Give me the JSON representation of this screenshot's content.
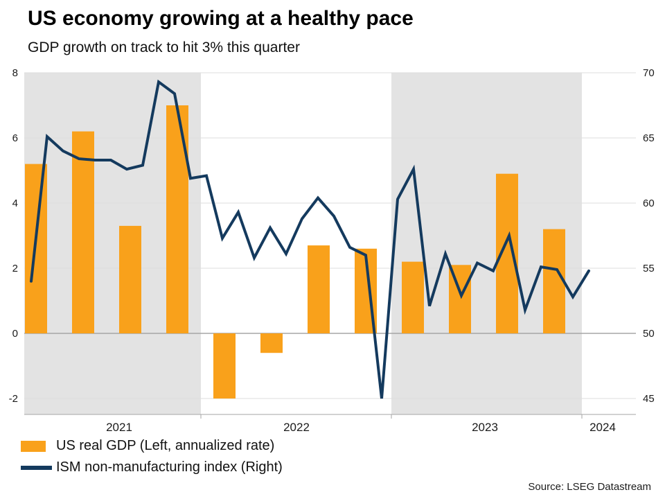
{
  "header": {
    "title": "US economy growing at a healthy pace",
    "subtitle": "GDP growth on track to hit 3% this quarter"
  },
  "footer": {
    "source": "Source: LSEG Datastream"
  },
  "colors": {
    "bar_orange": "#F9A11B",
    "line_navy": "#143A5E",
    "band_gray": "#E3E3E3",
    "gridline": "#DCDCDC",
    "zero_line": "#A6A6A6",
    "axis_text": "#1A1A1A"
  },
  "chart_data": {
    "type": "bar+line",
    "title": "US economy growing at a healthy pace",
    "subtitle": "GDP growth on track to hit 3% this quarter",
    "x_tick_labels": [
      "2021",
      "2022",
      "2023",
      "2024"
    ],
    "left_axis": {
      "ticks": [
        8,
        6,
        4,
        2,
        0,
        -2
      ],
      "min": -2.5,
      "max": 8
    },
    "right_axis": {
      "ticks": [
        70,
        65,
        60,
        55,
        50,
        45
      ],
      "min": 43.8,
      "max": 70
    },
    "grid": true,
    "legend_position": "bottom-left",
    "shaded_band_years": [
      "2021",
      "2023"
    ],
    "series": [
      {
        "name": "US real GDP (Left, annualized rate)",
        "type": "bar",
        "axis": "left",
        "frequency": "quarterly",
        "color": "#F9A11B",
        "values": [
          5.2,
          6.2,
          3.3,
          7.0,
          -2.0,
          -0.6,
          2.7,
          2.6,
          2.2,
          2.1,
          4.9,
          3.2
        ]
      },
      {
        "name": "ISM non-manufacturing index (Right)",
        "type": "line",
        "axis": "right",
        "frequency": "monthly",
        "color": "#143A5E",
        "values": [
          54.0,
          65.1,
          64.0,
          63.4,
          63.3,
          63.3,
          62.6,
          62.9,
          69.3,
          68.4,
          61.9,
          62.1,
          57.3,
          59.3,
          55.8,
          58.1,
          56.1,
          58.8,
          60.4,
          59.0,
          56.6,
          56.0,
          45.0,
          60.3,
          62.6,
          52.1,
          56.1,
          52.9,
          55.4,
          54.8,
          57.5,
          51.8,
          55.1,
          54.9,
          52.8,
          54.8
        ]
      }
    ],
    "source": "Source: LSEG Datastream"
  }
}
